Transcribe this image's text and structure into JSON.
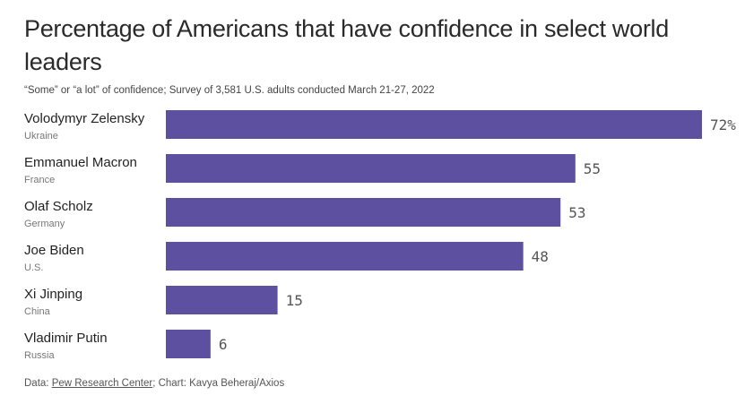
{
  "chart_data": {
    "type": "bar",
    "orientation": "horizontal",
    "title": "Percentage of Americans that have confidence in select world leaders",
    "subtitle": "“Some” or “a lot” of confidence; Survey of 3,581 U.S. adults conducted March 21-27, 2022",
    "categories": [
      "Volodymyr Zelensky",
      "Emmanuel Macron",
      "Olaf Scholz",
      "Joe Biden",
      "Xi Jinping",
      "Vladimir Putin"
    ],
    "sublabels": [
      "Ukraine",
      "France",
      "Germany",
      "U.S.",
      "China",
      "Russia"
    ],
    "values": [
      72,
      55,
      53,
      48,
      15,
      6
    ],
    "value_labels": [
      "72%",
      "55",
      "53",
      "48",
      "15",
      "6"
    ],
    "xlim": [
      0,
      72
    ],
    "grid": false,
    "bar_color": "#5e50a1"
  },
  "footer": {
    "prefix": "Data: ",
    "source_link": "Pew Research Center",
    "suffix": "; Chart: Kavya Beheraj/Axios"
  }
}
